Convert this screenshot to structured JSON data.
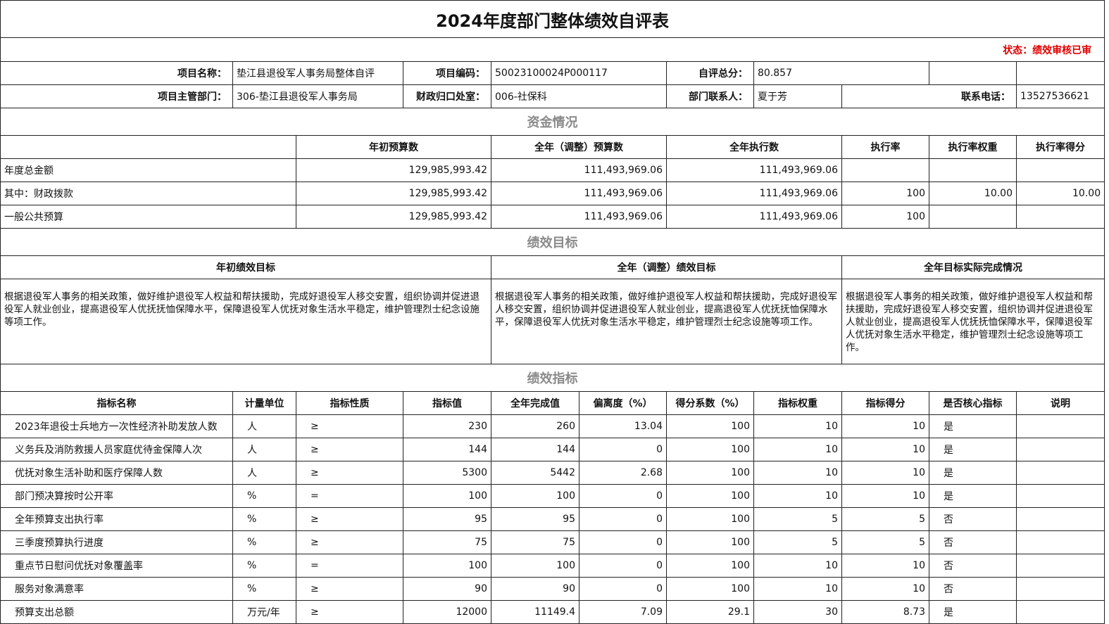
{
  "title": "2024年度部门整体绩效自评表",
  "status": "状态：绩效审核已审",
  "info": {
    "rows": [
      [
        "项目名称：",
        "垫江县退役军人事务局整体自评",
        "项目编码：",
        "50023100024P000117",
        "自评总分：",
        "80.857"
      ],
      [
        "项目主管部门：",
        "306-垫江县退役军人事务局",
        "财政归口处室：",
        "006-社保科",
        "部门联系人：",
        "夏于芳",
        "联系电话：",
        "13527536621"
      ]
    ]
  },
  "funds": {
    "title": "资金情况",
    "header": [
      "年初预算数",
      "全年（调整）预算数",
      "全年执行数",
      "执行率",
      "执行率权重",
      "执行率得分"
    ],
    "rows": [
      [
        "年度总金额",
        "129,985,993.42",
        "111,493,969.06",
        "111,493,969.06",
        null,
        null,
        null
      ],
      [
        "其中：财政拨款",
        "129,985,993.42",
        "111,493,969.06",
        "111,493,969.06",
        "100",
        "10.00",
        "10.00"
      ],
      [
        "一般公共预算",
        "129,985,993.42",
        "111,493,969.06",
        "111,493,969.06",
        "100",
        null,
        null
      ]
    ]
  },
  "goals": {
    "title": "绩效目标",
    "header": [
      "年初绩效目标",
      "全年（调整）绩效目标",
      "全年目标实际完成情况"
    ],
    "texts": [
      "根据退役军人事务的相关政策，做好维护退役军人权益和帮扶援助，完成好退役军人移交安置，组织协调并促进退役军人就业创业，提高退役军人优抚抚恤保障水平，保障退役军人优抚对象生活水平稳定，维护管理烈士纪念设施等项工作。",
      "根据退役军人事务的相关政策，做好维护退役军人权益和帮扶援助，完成好退役军人移交安置，组织协调并促进退役军人就业创业，提高退役军人优抚抚恤保障水平，保障退役军人优抚对象生活水平稳定，维护管理烈士纪念设施等项工作。",
      "根据退役军人事务的相关政策，做好维护退役军人权益和帮扶援助，完成好退役军人移交安置，组织协调并促进退役军人就业创业，提高退役军人优抚抚恤保障水平，保障退役军人优抚对象生活水平稳定，维护管理烈士纪念设施等项工作。"
    ]
  },
  "indicators": {
    "title": "绩效指标",
    "header": [
      "指标名称",
      "计量单位",
      "指标性质",
      "指标值",
      "全年完成值",
      "偏离度（%）",
      "得分系数（%）",
      "指标权重",
      "指标得分",
      "是否核心指标",
      "说明"
    ],
    "rows": [
      [
        "2023年退役士兵地方一次性经济补助发放人数",
        "人",
        "≥",
        "230",
        "260",
        "13.04",
        "100",
        "10",
        "10",
        "是",
        null
      ],
      [
        "义务兵及消防救援人员家庭优待金保障人次",
        "人",
        "≥",
        "144",
        "144",
        "0",
        "100",
        "10",
        "10",
        "是",
        null
      ],
      [
        "优抚对象生活补助和医疗保障人数",
        "人",
        "≥",
        "5300",
        "5442",
        "2.68",
        "100",
        "10",
        "10",
        "是",
        null
      ],
      [
        "部门预决算按时公开率",
        "%",
        "=",
        "100",
        "100",
        "0",
        "100",
        "10",
        "10",
        "是",
        null
      ],
      [
        "全年预算支出执行率",
        "%",
        "≥",
        "95",
        "95",
        "0",
        "100",
        "5",
        "5",
        "否",
        null
      ],
      [
        "三季度预算执行进度",
        "%",
        "≥",
        "75",
        "75",
        "0",
        "100",
        "5",
        "5",
        "否",
        null
      ],
      [
        "重点节日慰问优抚对象覆盖率",
        "%",
        "=",
        "100",
        "100",
        "0",
        "100",
        "10",
        "10",
        "否",
        null
      ],
      [
        "服务对象满意率",
        "%",
        "≥",
        "90",
        "90",
        "0",
        "100",
        "10",
        "10",
        "否",
        null
      ],
      [
        "预算支出总额",
        "万元/年",
        "≥",
        "12000",
        "11149.4",
        "7.09",
        "29.1",
        "30",
        "8.73",
        "是",
        null
      ]
    ]
  }
}
